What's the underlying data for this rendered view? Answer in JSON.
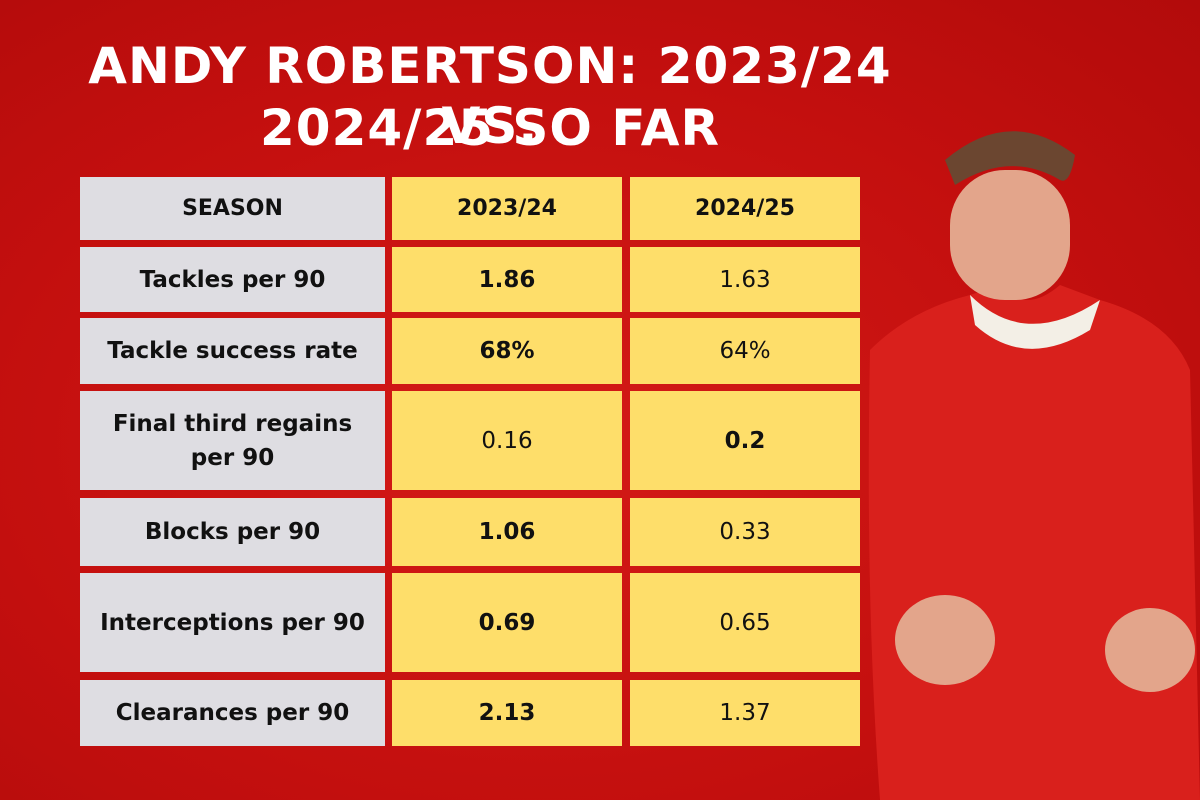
{
  "title": {
    "line1": "ANDY ROBERTSON: 2023/24 VS.",
    "line2": "2024/25 SO FAR"
  },
  "table": {
    "header": [
      "SEASON",
      "2023/24",
      "2024/25"
    ],
    "rows": [
      [
        "Tackles per 90",
        "1.86",
        "1.63"
      ],
      [
        "Tackle success rate",
        "68%",
        "64%"
      ],
      [
        "Final third regains per 90",
        "0.16",
        "0.2"
      ],
      [
        "Blocks per 90",
        "1.06",
        "0.33"
      ],
      [
        "Interceptions per 90",
        "0.69",
        "0.65"
      ],
      [
        "Clearances per 90",
        "2.13",
        "1.37"
      ]
    ],
    "bold_column": [
      1,
      1,
      2,
      1,
      1,
      1
    ]
  }
}
